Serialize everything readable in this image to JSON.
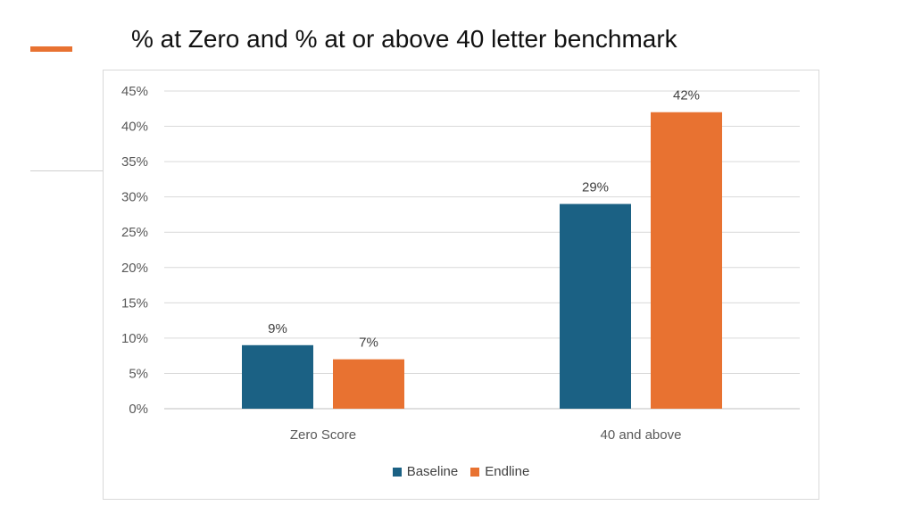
{
  "slide": {
    "title": "% at Zero and % at or above 40 letter benchmark",
    "accent_color": "#E87231"
  },
  "chart_data": {
    "type": "bar",
    "categories": [
      "Zero Score",
      "40 and above"
    ],
    "series": [
      {
        "name": "Baseline",
        "values": [
          9,
          29
        ],
        "labels": [
          "9%",
          "29%"
        ],
        "color": "#1B6184"
      },
      {
        "name": "Endline",
        "values": [
          7,
          42
        ],
        "labels": [
          "7%",
          "42%"
        ],
        "color": "#E87231"
      }
    ],
    "y_ticks": [
      "0%",
      "5%",
      "10%",
      "15%",
      "20%",
      "25%",
      "30%",
      "35%",
      "40%",
      "45%"
    ],
    "ylim": [
      0,
      45
    ],
    "grid": true,
    "legend_position": "bottom"
  }
}
